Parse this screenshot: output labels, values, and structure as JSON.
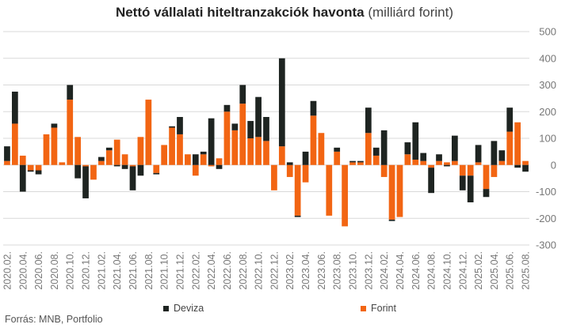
{
  "title_bold": "Nettó vállalati hiteltranzakciók havonta",
  "title_light": "(milliárd forint)",
  "source": "Forrás: MNB, Portfolio",
  "colors": {
    "deviza": "#1e2421",
    "forint": "#f26513",
    "grid": "#d9d9d9",
    "tick": "#777777"
  },
  "legend": [
    {
      "name": "Deviza",
      "color": "#1e2421"
    },
    {
      "name": "Forint",
      "color": "#f26513"
    }
  ],
  "chart_data": {
    "type": "bar",
    "stacked": true,
    "title": "Nettó vállalati hiteltranzakciók havonta (milliárd forint)",
    "ylim": [
      -300,
      500
    ],
    "yticks": [
      -300,
      -200,
      -100,
      0,
      100,
      200,
      300,
      400,
      500
    ],
    "y_axis_position": "right",
    "grid": true,
    "legend_position": "bottom",
    "x_tick_labels": [
      "2020.02.",
      "2020.04.",
      "2020.06.",
      "2020.08.",
      "2020.10.",
      "2020.12.",
      "2021.02.",
      "2021.04.",
      "2021.06.",
      "2021.08.",
      "2021.10.",
      "2021.12.",
      "2022.02.",
      "2022.04.",
      "2022.06.",
      "2022.08.",
      "2022.10.",
      "2022.12.",
      "2023.02.",
      "2023.04.",
      "2023.06.",
      "2023.08.",
      "2023.10.",
      "2023.12.",
      "2024.02.",
      "2024.04.",
      "2024.06.",
      "2024.08.",
      "2024.10.",
      "2024.12.",
      "2025.02.",
      "2025.04.",
      "2025.06.",
      "2025.08."
    ],
    "categories": [
      "2020.02.",
      "2020.03.",
      "2020.04.",
      "2020.05.",
      "2020.06.",
      "2020.07.",
      "2020.08.",
      "2020.09.",
      "2020.10.",
      "2020.11.",
      "2020.12.",
      "2021.01.",
      "2021.02.",
      "2021.03.",
      "2021.04.",
      "2021.05.",
      "2021.06.",
      "2021.07.",
      "2021.08.",
      "2021.09.",
      "2021.10.",
      "2021.11.",
      "2021.12.",
      "2022.01.",
      "2022.02.",
      "2022.03.",
      "2022.04.",
      "2022.05.",
      "2022.06.",
      "2022.07.",
      "2022.08.",
      "2022.09.",
      "2022.10.",
      "2022.11.",
      "2022.12.",
      "2023.01.",
      "2023.02.",
      "2023.03.",
      "2023.04.",
      "2023.05.",
      "2023.06.",
      "2023.07.",
      "2023.08.",
      "2023.09.",
      "2023.10.",
      "2023.11.",
      "2023.12.",
      "2024.01.",
      "2024.02.",
      "2024.03.",
      "2024.04.",
      "2024.05.",
      "2024.06.",
      "2024.07.",
      "2024.08.",
      "2024.09.",
      "2024.10.",
      "2024.11.",
      "2024.12.",
      "2025.01.",
      "2025.02.",
      "2025.03.",
      "2025.04.",
      "2025.05.",
      "2025.06.",
      "2025.07.",
      "2025.08."
    ],
    "series": [
      {
        "name": "Forint",
        "values": [
          15,
          155,
          35,
          -20,
          -20,
          115,
          140,
          10,
          245,
          105,
          -5,
          -55,
          15,
          55,
          95,
          40,
          -5,
          105,
          245,
          -30,
          75,
          140,
          115,
          40,
          -40,
          40,
          -5,
          25,
          200,
          130,
          230,
          100,
          105,
          90,
          -95,
          70,
          -45,
          -190,
          -65,
          185,
          120,
          -190,
          50,
          -230,
          10,
          10,
          120,
          35,
          -45,
          -205,
          -195,
          40,
          20,
          15,
          -10,
          15,
          10,
          15,
          -40,
          -40,
          10,
          -90,
          -45,
          15,
          125,
          160,
          15
        ]
      },
      {
        "name": "Deviza",
        "values": [
          55,
          120,
          -100,
          -5,
          -15,
          0,
          15,
          0,
          55,
          -50,
          -120,
          0,
          15,
          10,
          -5,
          -15,
          -90,
          -40,
          0,
          -5,
          0,
          5,
          65,
          0,
          40,
          10,
          175,
          -15,
          25,
          25,
          70,
          65,
          150,
          90,
          0,
          330,
          10,
          -5,
          50,
          55,
          0,
          0,
          15,
          0,
          5,
          5,
          95,
          30,
          130,
          -5,
          0,
          45,
          140,
          30,
          -95,
          25,
          -5,
          95,
          -55,
          -100,
          65,
          -30,
          90,
          40,
          90,
          -10,
          -25
        ]
      }
    ]
  }
}
